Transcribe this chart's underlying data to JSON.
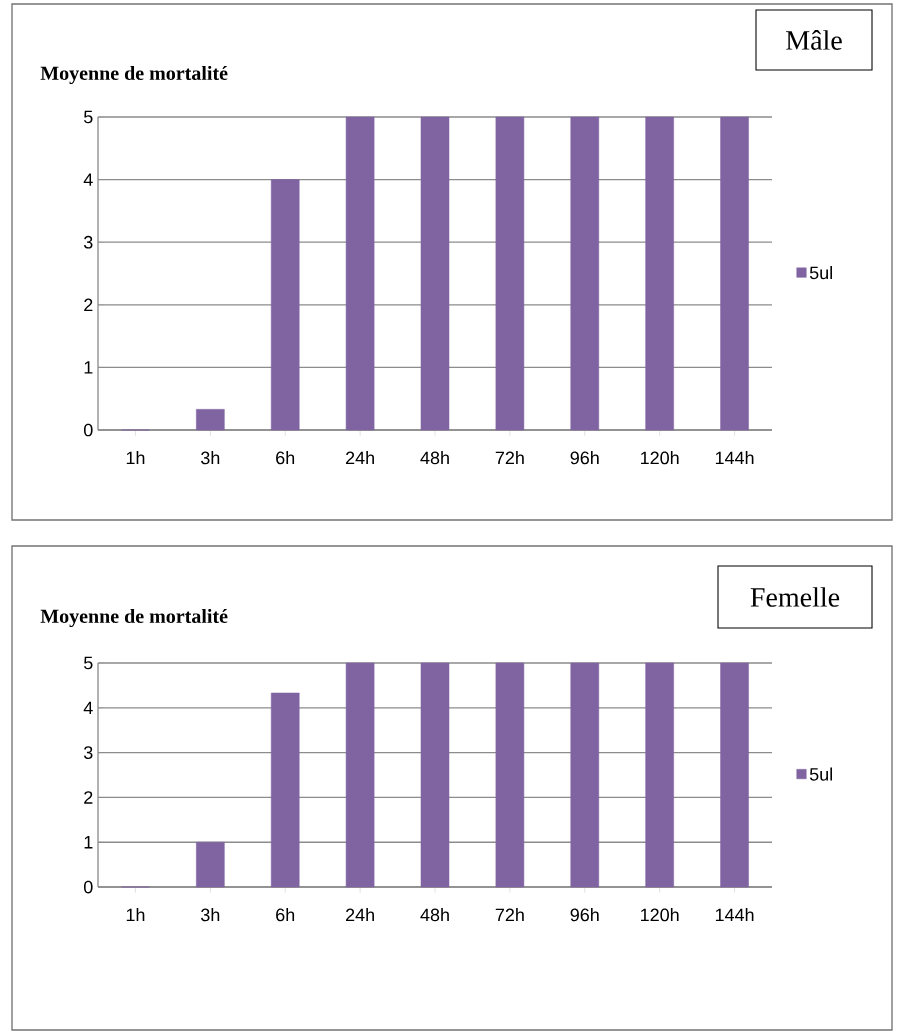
{
  "chart_data": [
    {
      "type": "bar",
      "ylabel": "Moyenne de mortalité",
      "annotations": [
        "Mâle"
      ],
      "categories": [
        "1h",
        "3h",
        "6h",
        "24h",
        "48h",
        "72h",
        "96h",
        "120h",
        "144h"
      ],
      "series": [
        {
          "name": "5ul",
          "color": "#8064a2",
          "values": [
            0,
            0.33,
            4,
            5,
            5,
            5,
            5,
            5,
            5
          ]
        }
      ],
      "ylim": [
        0,
        5
      ],
      "yticks": [
        0,
        1,
        2,
        3,
        4,
        5
      ],
      "grid": "y",
      "legend": "right"
    },
    {
      "type": "bar",
      "ylabel": "Moyenne de mortalité",
      "annotations": [
        "Femelle"
      ],
      "categories": [
        "1h",
        "3h",
        "6h",
        "24h",
        "48h",
        "72h",
        "96h",
        "120h",
        "144h"
      ],
      "series": [
        {
          "name": "5ul",
          "color": "#8064a2",
          "values": [
            0,
            1,
            4.33,
            5,
            5,
            5,
            5,
            5,
            5
          ]
        }
      ],
      "ylim": [
        0,
        5
      ],
      "yticks": [
        0,
        1,
        2,
        3,
        4,
        5
      ],
      "grid": "y",
      "legend": "right"
    }
  ]
}
